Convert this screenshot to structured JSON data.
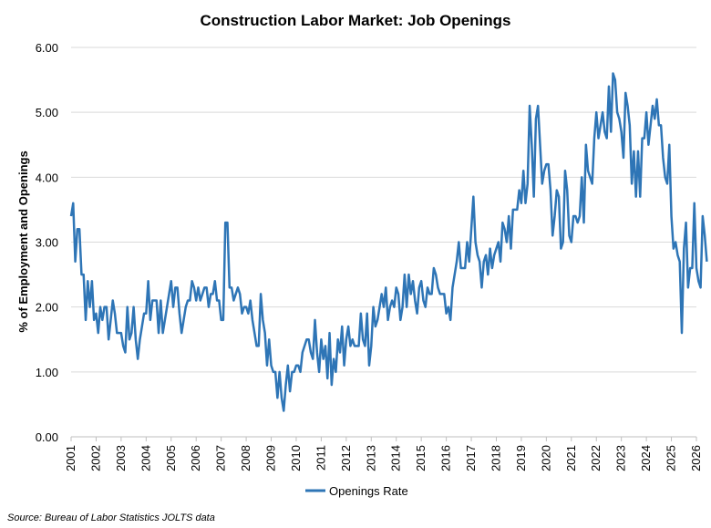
{
  "chart_data": {
    "type": "line",
    "title": "Construction Labor Market: Job Openings",
    "ylabel": "% of Employment and Openings",
    "xlabel": "",
    "ylim": [
      0,
      6
    ],
    "yticks": [
      "0.00",
      "1.00",
      "2.00",
      "3.00",
      "4.00",
      "5.00",
      "6.00"
    ],
    "xlim": [
      2001,
      2026
    ],
    "xticks": [
      "2001",
      "2002",
      "2003",
      "2004",
      "2005",
      "2006",
      "2007",
      "2008",
      "2009",
      "2010",
      "2011",
      "2012",
      "2013",
      "2014",
      "2015",
      "2016",
      "2017",
      "2018",
      "2019",
      "2020",
      "2021",
      "2022",
      "2023",
      "2024",
      "2025",
      "2026"
    ],
    "grid": true,
    "legend": "bottom-center",
    "series": [
      {
        "name": "Openings Rate",
        "color": "#2e75b6",
        "start_year": 2001,
        "values": [
          3.4,
          3.6,
          2.7,
          3.2,
          3.2,
          2.5,
          2.5,
          1.8,
          2.4,
          2.0,
          2.4,
          1.8,
          1.9,
          1.6,
          2.0,
          1.8,
          2.0,
          2.0,
          1.5,
          1.8,
          2.1,
          1.9,
          1.6,
          1.6,
          1.6,
          1.4,
          1.3,
          2.0,
          1.5,
          1.6,
          2.0,
          1.5,
          1.2,
          1.5,
          1.7,
          1.9,
          1.9,
          2.4,
          1.8,
          2.1,
          2.1,
          2.1,
          1.6,
          2.1,
          1.6,
          1.8,
          2.0,
          2.2,
          2.4,
          2.0,
          2.3,
          2.3,
          1.9,
          1.6,
          1.8,
          2.0,
          2.1,
          2.1,
          2.4,
          2.3,
          2.1,
          2.3,
          2.1,
          2.2,
          2.3,
          2.3,
          2.0,
          2.2,
          2.2,
          2.4,
          2.1,
          2.1,
          1.8,
          1.8,
          3.3,
          3.3,
          2.3,
          2.3,
          2.1,
          2.2,
          2.3,
          2.2,
          1.9,
          2.0,
          2.0,
          1.9,
          2.1,
          1.8,
          1.6,
          1.4,
          1.4,
          2.2,
          1.8,
          1.6,
          1.1,
          1.5,
          1.1,
          1.0,
          1.0,
          0.6,
          1.0,
          0.6,
          0.4,
          0.8,
          1.1,
          0.7,
          1.0,
          1.0,
          1.1,
          1.1,
          1.0,
          1.3,
          1.4,
          1.5,
          1.5,
          1.3,
          1.2,
          1.8,
          1.3,
          1.0,
          1.5,
          1.2,
          1.4,
          0.9,
          1.6,
          0.8,
          1.2,
          1.0,
          1.5,
          1.3,
          1.7,
          1.1,
          1.5,
          1.7,
          1.4,
          1.5,
          1.4,
          1.4,
          1.4,
          1.9,
          1.5,
          1.4,
          1.9,
          1.1,
          1.4,
          2.0,
          1.7,
          1.8,
          2.0,
          2.2,
          2.0,
          2.3,
          1.8,
          2.0,
          2.1,
          2.0,
          2.3,
          2.2,
          1.8,
          2.0,
          2.5,
          2.0,
          2.5,
          2.2,
          2.4,
          2.1,
          1.9,
          2.3,
          2.4,
          2.1,
          2.0,
          2.3,
          2.2,
          2.2,
          2.6,
          2.5,
          2.3,
          2.2,
          2.2,
          2.2,
          1.9,
          2.0,
          1.8,
          2.3,
          2.5,
          2.7,
          3.0,
          2.6,
          2.6,
          2.6,
          3.0,
          2.7,
          3.2,
          3.7,
          3.0,
          2.8,
          2.7,
          2.3,
          2.7,
          2.8,
          2.5,
          2.9,
          2.6,
          2.8,
          2.9,
          3.0,
          2.7,
          3.3,
          3.2,
          3.0,
          3.4,
          2.9,
          3.5,
          3.5,
          3.5,
          3.8,
          3.6,
          4.1,
          3.6,
          3.9,
          5.1,
          4.5,
          3.7,
          4.9,
          5.1,
          4.5,
          3.9,
          4.1,
          4.2,
          4.2,
          3.8,
          3.1,
          3.4,
          3.8,
          3.7,
          2.9,
          3.0,
          4.1,
          3.8,
          3.1,
          3.0,
          3.4,
          3.4,
          3.3,
          3.4,
          4.0,
          3.3,
          4.5,
          4.1,
          4.0,
          3.9,
          4.6,
          5.0,
          4.6,
          4.8,
          5.0,
          4.7,
          4.6,
          5.4,
          4.7,
          5.6,
          5.5,
          5.0,
          4.9,
          4.7,
          4.3,
          5.3,
          5.1,
          4.8,
          3.9,
          4.4,
          3.7,
          4.4,
          3.7,
          4.6,
          4.6,
          5.0,
          4.5,
          4.8,
          5.1,
          4.9,
          5.2,
          4.8,
          4.8,
          4.3,
          4.0,
          3.9,
          4.5,
          3.4,
          2.9,
          3.0,
          2.8,
          2.7,
          1.6,
          2.9,
          3.3,
          2.3,
          2.6,
          2.6,
          3.6,
          2.6,
          2.4,
          2.3,
          3.4,
          3.1,
          2.7
        ]
      }
    ]
  },
  "source_text": "Source: Bureau of Labor Statistics JOLTS data"
}
